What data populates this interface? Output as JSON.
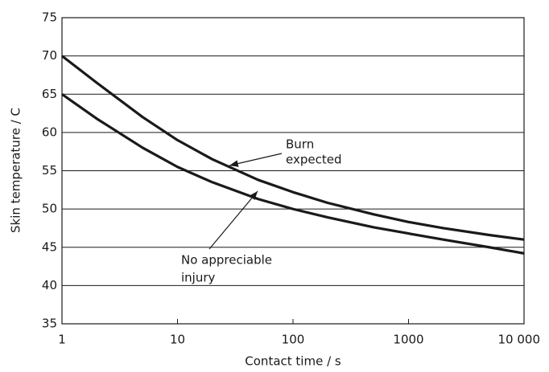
{
  "chart_data": {
    "type": "line",
    "x_label": "Contact time / s",
    "y_label": "Skin temperature / C",
    "x": [
      1,
      2,
      5,
      10,
      20,
      50,
      100,
      200,
      500,
      1000,
      2000,
      5000,
      10000
    ],
    "series": [
      {
        "name": "Burn expected",
        "color": "#1a1a1a",
        "values": [
          70,
          66.5,
          62,
          59,
          56.5,
          53.8,
          52.2,
          50.8,
          49.3,
          48.3,
          47.5,
          46.6,
          46.0
        ]
      },
      {
        "name": "No appreciable injury",
        "color": "#1a1a1a",
        "values": [
          65,
          61.8,
          58,
          55.5,
          53.5,
          51.3,
          50,
          48.9,
          47.6,
          46.8,
          46.0,
          45.0,
          44.2
        ]
      }
    ],
    "annotations": [
      [
        "Burn",
        "expected"
      ],
      [
        "No appreciable",
        "injury"
      ]
    ],
    "xlim": [
      1,
      10000
    ],
    "xticks": [
      1,
      10,
      100,
      1000,
      {
        "value": 10000,
        "label": "10 000"
      }
    ],
    "xscale": "log",
    "ylim": [
      35,
      75
    ],
    "yticks": [
      35,
      40,
      45,
      50,
      55,
      60,
      65,
      70,
      75
    ],
    "grid": true
  }
}
